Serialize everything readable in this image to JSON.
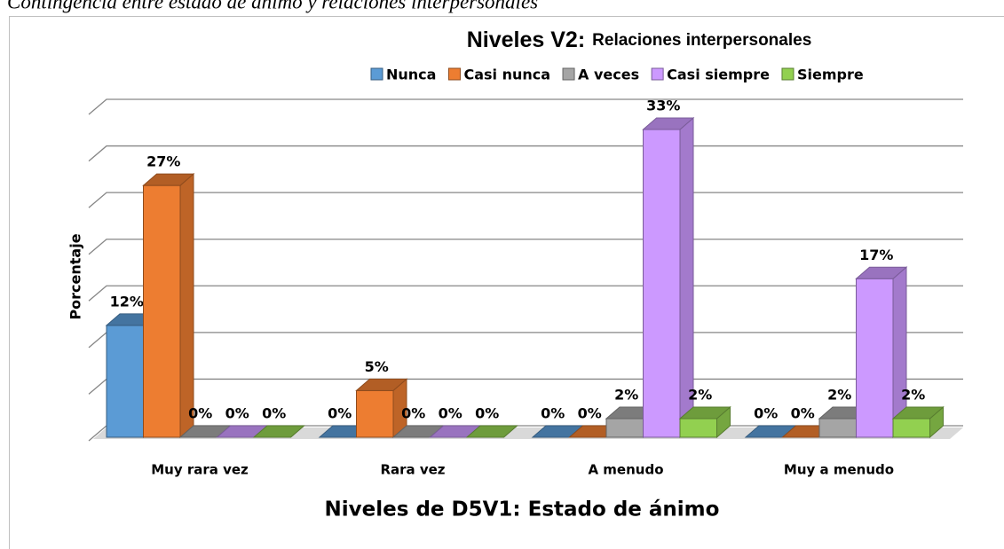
{
  "caption": "Contingencia entre estado de ánimo y relaciones interpersonales",
  "chart_data": {
    "type": "bar3d",
    "title": "Niveles V2:",
    "subtitle": "Relaciones interpersonales",
    "y_label": "Porcentaje",
    "x_label": "Niveles de D5V1: Estado de ánimo",
    "legend": "top",
    "grid": true,
    "categories": [
      "Muy rara vez",
      "Rara vez",
      "A menudo",
      "Muy a menudo"
    ],
    "ylim": [
      0,
      35
    ],
    "yticks": [
      0,
      5,
      10,
      15,
      20,
      25,
      30,
      35
    ],
    "series": [
      {
        "name": "Nunca",
        "color": "#5b9bd5",
        "values": [
          12,
          0,
          0,
          0
        ],
        "value_labels": [
          "12%",
          "0%",
          "0%",
          "0%"
        ]
      },
      {
        "name": "Casi nunca",
        "color": "#ed7d31",
        "values": [
          27,
          5,
          0,
          0
        ],
        "value_labels": [
          "27%",
          "5%",
          "0%",
          "0%"
        ]
      },
      {
        "name": "A veces",
        "color": "#a5a5a5",
        "values": [
          0,
          0,
          2,
          2
        ],
        "value_labels": [
          "0%",
          "0%",
          "2%",
          "2%"
        ]
      },
      {
        "name": "Casi siempre",
        "color": "#cc99ff",
        "values": [
          0,
          0,
          33,
          17
        ],
        "value_labels": [
          "0%",
          "0%",
          "33%",
          "17%"
        ]
      },
      {
        "name": "Siempre",
        "color": "#92d050",
        "values": [
          0,
          0,
          2,
          2
        ],
        "value_labels": [
          "0%",
          "0%",
          "2%",
          "2%"
        ]
      }
    ]
  }
}
